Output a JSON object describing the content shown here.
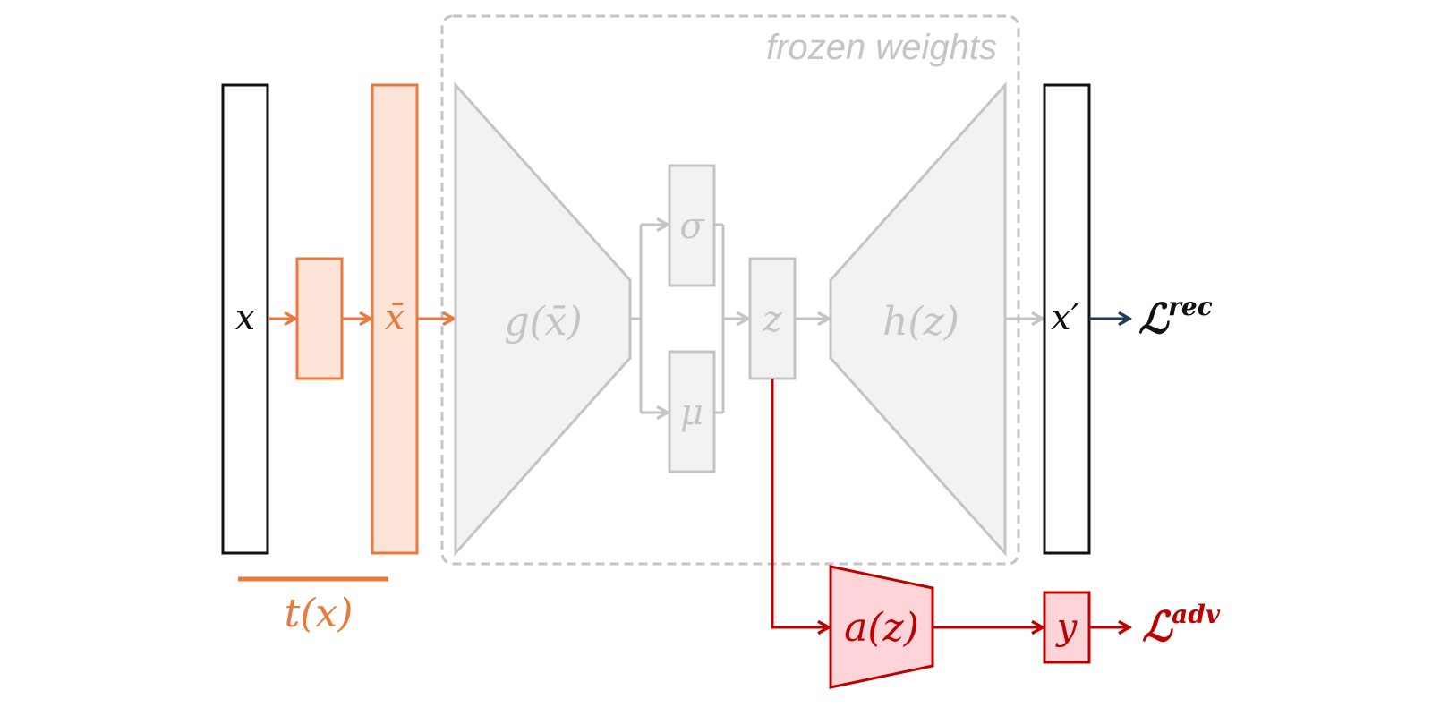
{
  "frozen_label": "frozen weights",
  "nodes": {
    "input": "x",
    "transformed": "x̄",
    "encoder": "g(x̄)",
    "sigma": "σ",
    "mu": "μ",
    "latent": "z",
    "decoder": "h(z)",
    "reconstruction": "x′",
    "adversary": "a(z)",
    "target": "y",
    "transform_function": "t(x)"
  },
  "losses": {
    "rec_base": "ℒ",
    "rec_sup": "rec",
    "adv_base": "ℒ",
    "adv_sup": "adv"
  },
  "colors": {
    "orange": "#e8793a",
    "orange_fill": "#fde4d8",
    "grey": "#c4c4c4",
    "grey_fill": "#f2f2f2",
    "red": "#c00000",
    "red_fill": "#fdd5d8",
    "navy": "#1f3b57",
    "black": "#111111"
  }
}
